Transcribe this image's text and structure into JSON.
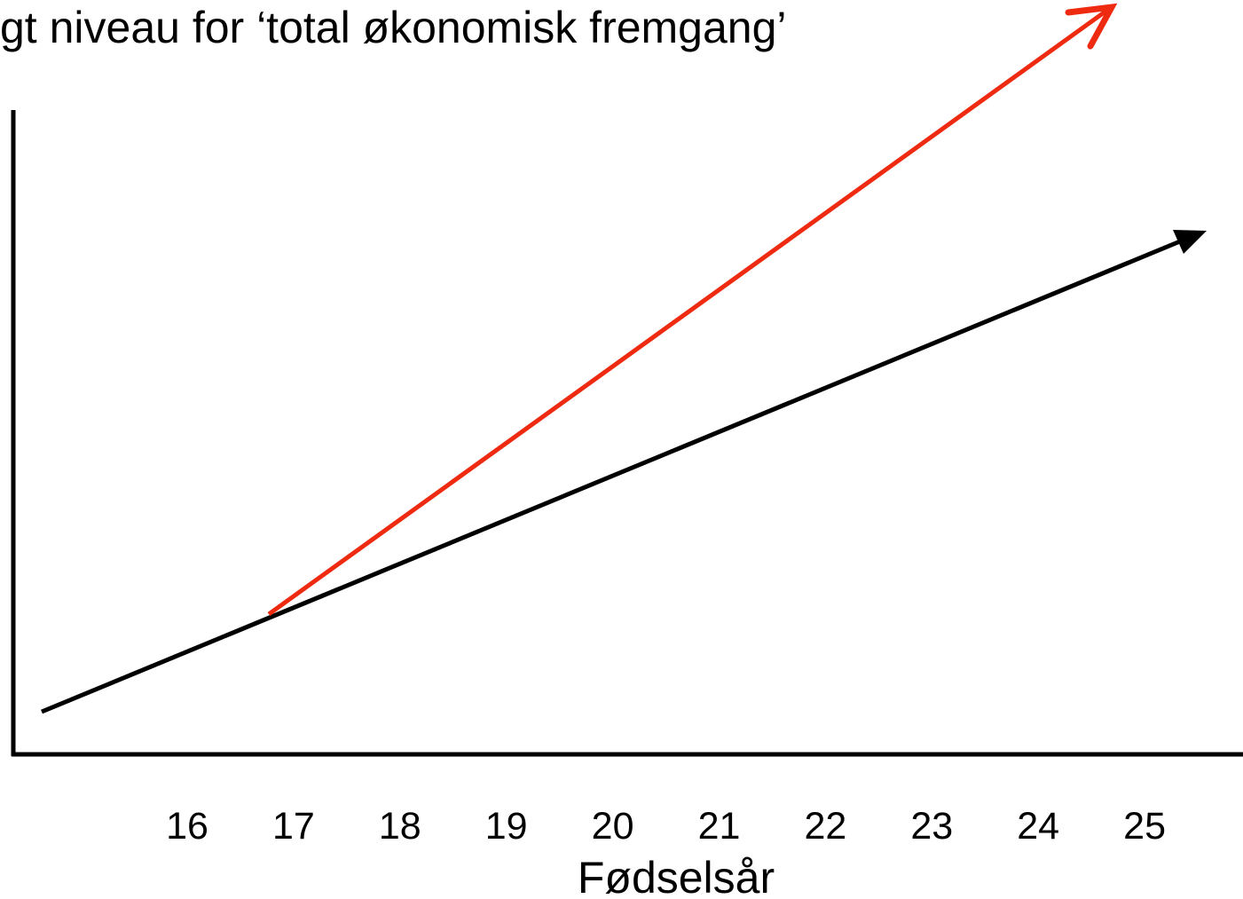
{
  "title": "gt niveau for ‘total økonomisk fremgang’",
  "x_axis": {
    "ticks": [
      "16",
      "17",
      "18",
      "19",
      "20",
      "21",
      "22",
      "23",
      "24",
      "25"
    ],
    "label": "Fødselsår"
  }
}
